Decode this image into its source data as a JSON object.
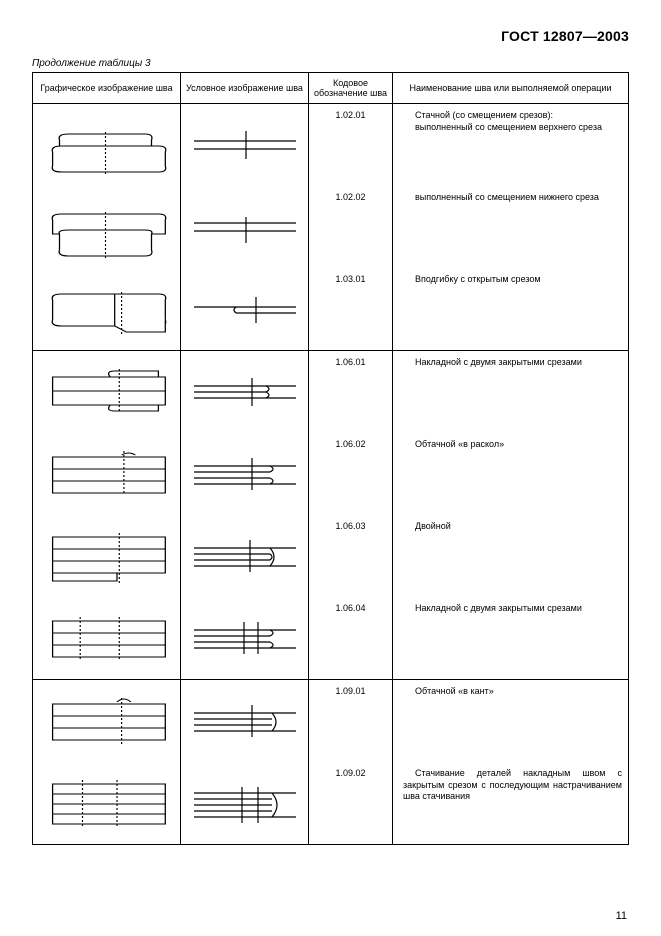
{
  "doc_id": "ГОСТ 12807—2003",
  "table_caption": "Продолжение таблицы 3",
  "page_number": "11",
  "headers": {
    "col1": "Графическое изображение шва",
    "col2": "Условное изображение шва",
    "col3": "Кодовое обозначение шва",
    "col4": "Наименование шва или выполняемой операции"
  },
  "groups": [
    {
      "group_header": "Стачной (со смещением срезов):",
      "rows": [
        {
          "code": "1.02.01",
          "name": "выполненный со смещением верхнего среза",
          "svg3d": "s3d_offset_top",
          "svg2d": "s2d_single_hi"
        },
        {
          "code": "1.02.02",
          "name": "выполненный со смещением нижнего среза",
          "svg3d": "s3d_offset_bot",
          "svg2d": "s2d_single_lo"
        },
        {
          "code": "1.03.01",
          "name": "Вподгибку с открытым срезом",
          "svg3d": "s3d_fold_open",
          "svg2d": "s2d_fold_single"
        }
      ]
    },
    {
      "group_header": "",
      "rows": [
        {
          "code": "1.06.01",
          "name": "Накладной с двумя закрытыми срезами",
          "svg3d": "s3d_lap_two",
          "svg2d": "s2d_roll_single"
        },
        {
          "code": "1.06.02",
          "name": "Обтачной «в раскол»",
          "svg3d": "s3d_roll_split",
          "svg2d": "s2d_roll_single2"
        },
        {
          "code": "1.06.03",
          "name": "Двойной",
          "svg3d": "s3d_double",
          "svg2d": "s2d_double"
        },
        {
          "code": "1.06.04",
          "name": "Накладной с двумя закрытыми срезами",
          "svg3d": "s3d_lap_two2",
          "svg2d": "s2d_double_stitch"
        }
      ]
    },
    {
      "group_header": "",
      "rows": [
        {
          "code": "1.09.01",
          "name": "Обтачной «в кант»",
          "svg3d": "s3d_kant",
          "svg2d": "s2d_kant"
        },
        {
          "code": "1.09.02",
          "name": "Стачивание деталей накладным швом с закрытым срезом с последующим настрачиванием шва стачивания",
          "svg3d": "s3d_complex",
          "svg2d": "s2d_complex"
        }
      ]
    }
  ],
  "colors": {
    "line": "#000000",
    "bg": "#ffffff"
  }
}
